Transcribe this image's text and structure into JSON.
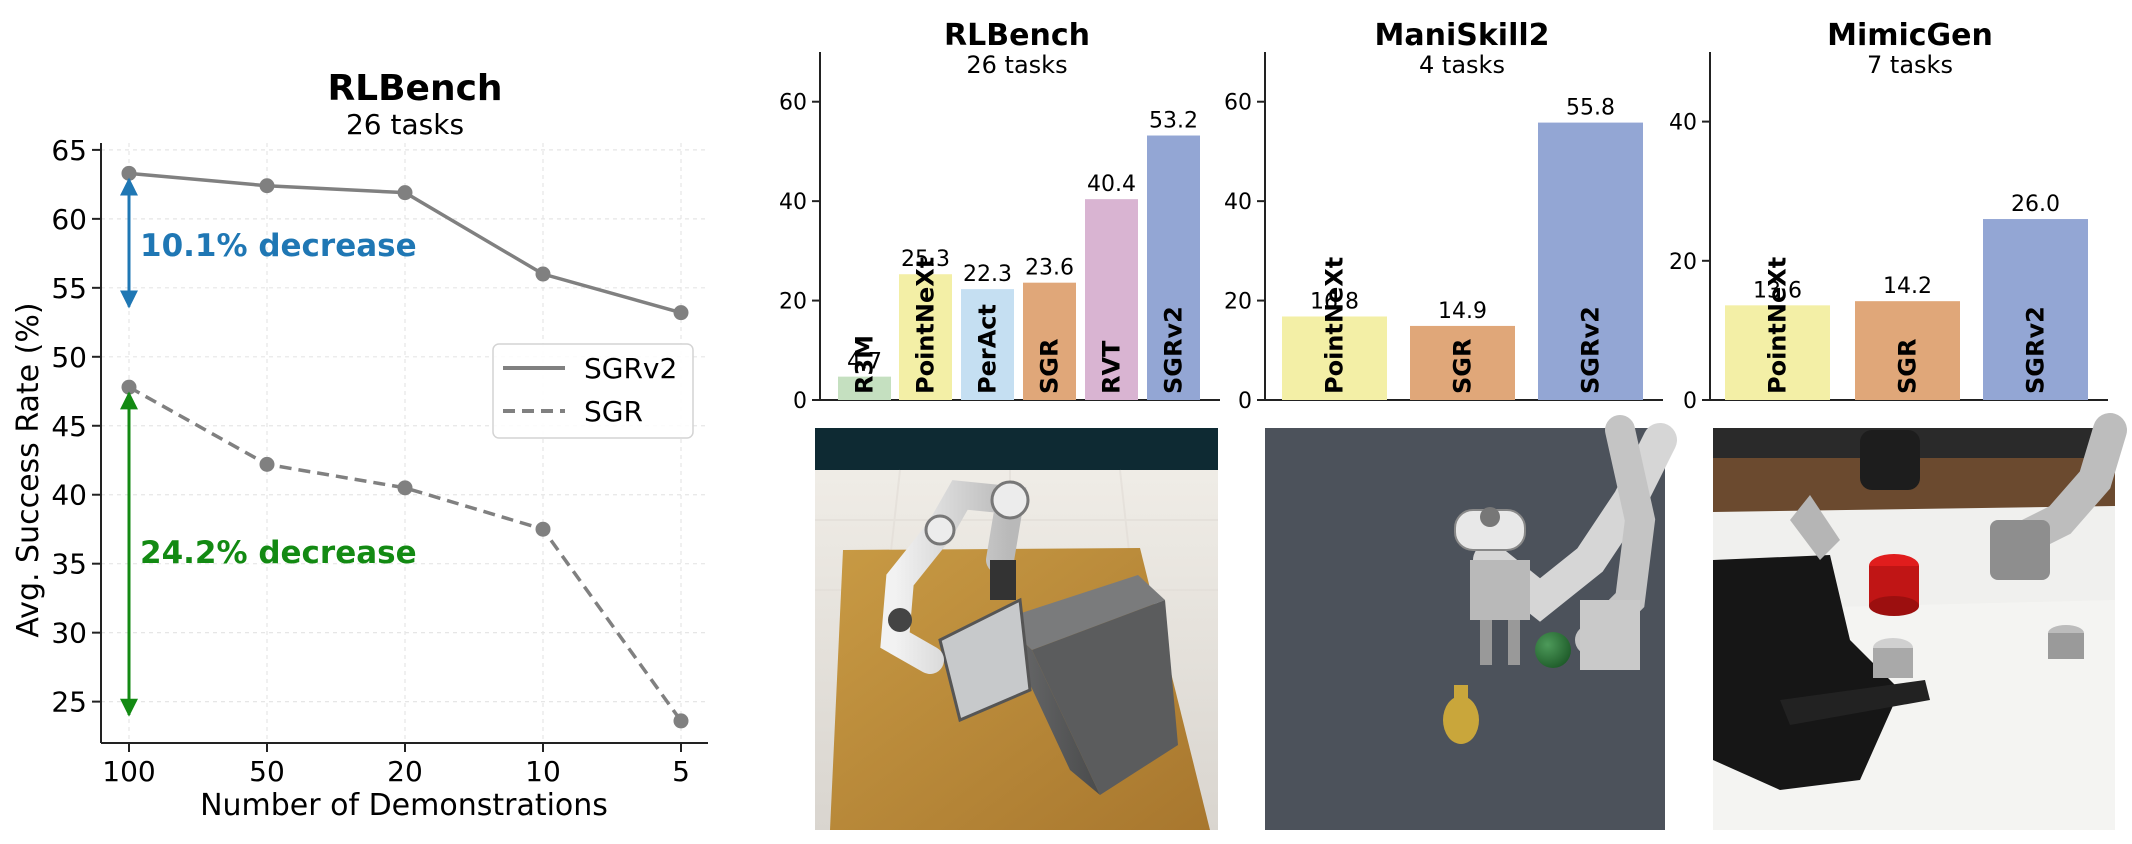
{
  "chart_data": [
    {
      "type": "line",
      "title": "RLBench",
      "subtitle": "26 tasks",
      "xlabel": "Number of Demonstrations",
      "ylabel": "Avg. Success Rate (%)",
      "categories": [
        "100",
        "50",
        "20",
        "10",
        "5"
      ],
      "ylim": [
        22,
        65.5
      ],
      "yticks": [
        "25",
        "30",
        "35",
        "40",
        "45",
        "50",
        "55",
        "60",
        "65"
      ],
      "grid": true,
      "legend": "center-right",
      "series": [
        {
          "name": "SGRv2",
          "style": "solid",
          "values": [
            63.3,
            62.4,
            61.9,
            56.0,
            53.2
          ]
        },
        {
          "name": "SGR",
          "style": "dashed",
          "values": [
            47.8,
            42.2,
            40.5,
            37.5,
            23.6
          ]
        }
      ],
      "annotations": [
        {
          "text": "10.1% decrease",
          "color": "#1f77b4",
          "from": 63.3,
          "to": 53.2
        },
        {
          "text": "24.2% decrease",
          "color": "#138a13",
          "from": 47.8,
          "to": 23.6
        }
      ]
    },
    {
      "type": "bar",
      "title": "RLBench",
      "subtitle": "26 tasks",
      "categories": [
        "R3M",
        "PointNeXt",
        "PerAct",
        "SGR",
        "RVT",
        "SGRv2"
      ],
      "values": [
        4.7,
        25.3,
        22.3,
        23.6,
        40.4,
        53.2
      ],
      "labels": [
        "4.7",
        "25.3",
        "22.3",
        "23.6",
        "40.4",
        "53.2"
      ],
      "colors": [
        "#c5e0c0",
        "#f3efa6",
        "#c5dff2",
        "#e0a779",
        "#d9b4d2",
        "#93a6d4"
      ],
      "ylim": [
        0,
        70
      ],
      "yticks": [
        "0",
        "20",
        "40",
        "60"
      ]
    },
    {
      "type": "bar",
      "title": "ManiSkill2",
      "subtitle": "4 tasks",
      "categories": [
        "PointNeXt",
        "SGR",
        "SGRv2"
      ],
      "values": [
        16.8,
        14.9,
        55.8
      ],
      "labels": [
        "16.8",
        "14.9",
        "55.8"
      ],
      "colors": [
        "#f3efa6",
        "#e0a779",
        "#93a6d4"
      ],
      "ylim": [
        0,
        70
      ],
      "yticks": [
        "0",
        "20",
        "40",
        "60"
      ]
    },
    {
      "type": "bar",
      "title": "MimicGen",
      "subtitle": "7 tasks",
      "categories": [
        "PointNeXt",
        "SGR",
        "SGRv2"
      ],
      "values": [
        13.6,
        14.2,
        26.0
      ],
      "labels": [
        "13.6",
        "14.2",
        "26.0"
      ],
      "colors": [
        "#f3efa6",
        "#e0a779",
        "#93a6d4"
      ],
      "ylim": [
        0,
        50
      ],
      "yticks": [
        "0",
        "20",
        "40"
      ]
    }
  ],
  "palette": {
    "line": "#808080",
    "axis": "#222222",
    "grid": "#e6e6e6"
  },
  "icons": {
    "rlbench_scene": "robot-arm-open-box-image",
    "maniskill_scene": "robot-arm-grasp-ball-image",
    "mimicgen_scene": "robot-arm-coffee-machine-image"
  }
}
